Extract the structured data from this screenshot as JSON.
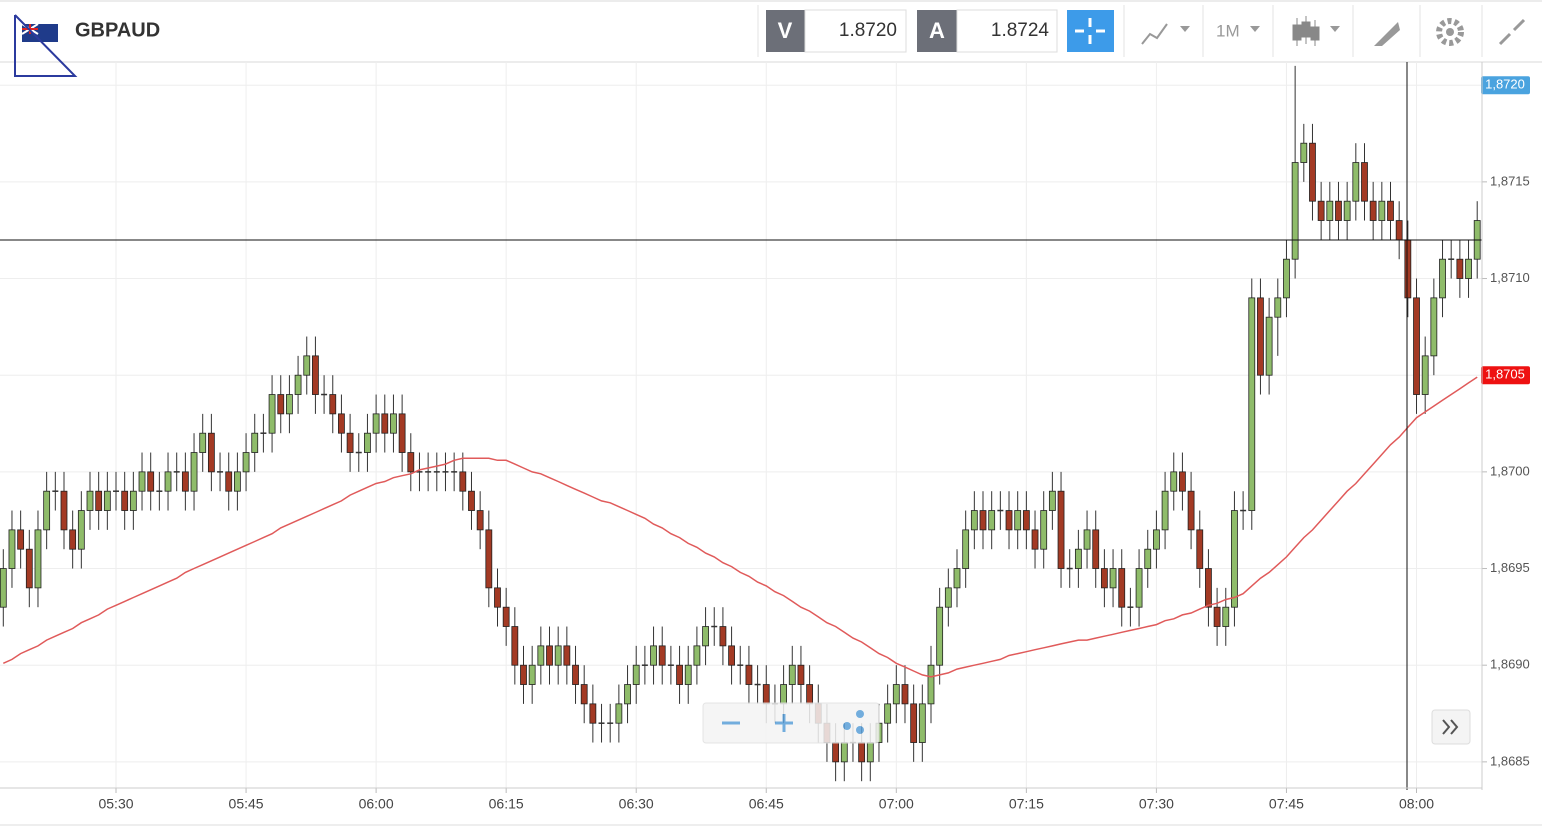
{
  "header": {
    "symbol": "GBPAUD",
    "bid_label": "V",
    "bid": "1.8720",
    "ask_label": "A",
    "ask": "1.8724",
    "timeframe": "1M"
  },
  "chart_data": {
    "type": "candlestick",
    "categories": [
      null,
      null,
      null,
      null,
      null,
      null,
      null,
      null,
      null,
      null,
      null,
      null,
      null,
      "05:30",
      null,
      null,
      null,
      null,
      null,
      null,
      null,
      null,
      null,
      null,
      null,
      null,
      null,
      null,
      "05:45",
      null,
      null,
      null,
      null,
      null,
      null,
      null,
      null,
      null,
      null,
      null,
      null,
      null,
      null,
      "06:00",
      null,
      null,
      null,
      null,
      null,
      null,
      null,
      null,
      null,
      null,
      null,
      null,
      null,
      null,
      "06:15",
      null,
      null,
      null,
      null,
      null,
      null,
      null,
      null,
      null,
      null,
      null,
      null,
      null,
      null,
      "06:30",
      null,
      null,
      null,
      null,
      null,
      null,
      null,
      null,
      null,
      null,
      null,
      null,
      null,
      null,
      "06:45",
      null,
      null,
      null,
      null,
      null,
      null,
      null,
      null,
      null,
      null,
      null,
      null,
      null,
      null,
      "07:00",
      null,
      null,
      null,
      null,
      null,
      null,
      null,
      null,
      null,
      null,
      null,
      null,
      null,
      null,
      "07:15",
      null,
      null,
      null,
      null,
      null,
      null,
      null,
      null,
      null,
      null,
      null,
      null,
      null,
      null,
      "07:30",
      null,
      null,
      null,
      null,
      null,
      null,
      null,
      null,
      null,
      null,
      null,
      null,
      null,
      null,
      "07:45",
      null,
      null,
      null,
      null,
      null,
      null,
      null,
      null,
      null,
      null,
      null,
      null,
      null,
      null,
      "08:00",
      null,
      null,
      null,
      null,
      null,
      null,
      null
    ],
    "open": [
      1.8693,
      1.8695,
      1.8697,
      1.8696,
      1.8694,
      1.8697,
      1.8699,
      1.8699,
      1.8697,
      1.8696,
      1.8698,
      1.8699,
      1.8698,
      1.8699,
      1.8699,
      1.8698,
      1.8699,
      1.87,
      1.8699,
      1.8699,
      1.87,
      1.87,
      1.8699,
      1.8701,
      1.8702,
      1.87,
      1.87,
      1.8699,
      1.87,
      1.8701,
      1.8702,
      1.8702,
      1.8704,
      1.8703,
      1.8704,
      1.8705,
      1.8706,
      1.8704,
      1.8704,
      1.8703,
      1.8702,
      1.8701,
      1.8701,
      1.8702,
      1.8703,
      1.8702,
      1.8703,
      1.8701,
      1.87,
      1.87,
      1.87,
      1.87,
      1.87,
      1.87,
      1.8699,
      1.8698,
      1.8697,
      1.8694,
      1.8693,
      1.8692,
      1.869,
      1.8689,
      1.869,
      1.8691,
      1.869,
      1.8691,
      1.869,
      1.8689,
      1.8688,
      1.8687,
      1.8687,
      1.8687,
      1.8688,
      1.8689,
      1.869,
      1.869,
      1.8691,
      1.869,
      1.869,
      1.8689,
      1.869,
      1.8691,
      1.8692,
      1.8692,
      1.8691,
      1.869,
      1.869,
      1.8689,
      1.8689,
      1.8688,
      1.8688,
      1.8689,
      1.869,
      1.8689,
      1.8688,
      1.8687,
      1.8686,
      1.8685,
      1.8686,
      1.8686,
      1.8685,
      1.8686,
      1.8687,
      1.8688,
      1.8689,
      1.8688,
      1.8686,
      1.8688,
      1.869,
      1.8693,
      1.8694,
      1.8695,
      1.8697,
      1.8698,
      1.8697,
      1.8698,
      1.8698,
      1.8697,
      1.8698,
      1.8697,
      1.8696,
      1.8698,
      1.8699,
      1.8695,
      1.8695,
      1.8696,
      1.8697,
      1.8695,
      1.8694,
      1.8695,
      1.8693,
      1.8693,
      1.8695,
      1.8696,
      1.8697,
      1.8699,
      1.87,
      1.8699,
      1.8697,
      1.8695,
      1.8693,
      1.8692,
      1.8693,
      1.8698,
      1.8698,
      1.8709,
      1.8705,
      1.8708,
      1.8709,
      1.8711,
      1.8716,
      1.8717,
      1.8714,
      1.8713,
      1.8714,
      1.8713,
      1.8714,
      1.8716,
      1.8714,
      1.8713,
      1.8714,
      1.8713,
      1.8712,
      1.8709,
      1.8704,
      1.8706,
      1.8709,
      1.8711,
      1.8711,
      1.871,
      1.8711
    ],
    "high": [
      1.8696,
      1.8698,
      1.8698,
      1.8697,
      1.8698,
      1.87,
      1.87,
      1.87,
      1.8698,
      1.8699,
      1.87,
      1.87,
      1.87,
      1.87,
      1.87,
      1.87,
      1.8701,
      1.8701,
      1.87,
      1.8701,
      1.8701,
      1.8701,
      1.8702,
      1.8703,
      1.8703,
      1.8701,
      1.8701,
      1.8701,
      1.8702,
      1.8703,
      1.8703,
      1.8705,
      1.8705,
      1.8705,
      1.8706,
      1.8707,
      1.8707,
      1.8705,
      1.8705,
      1.8704,
      1.8703,
      1.8702,
      1.8703,
      1.8704,
      1.8704,
      1.8704,
      1.8704,
      1.8702,
      1.8701,
      1.8701,
      1.8701,
      1.8701,
      1.8701,
      1.8701,
      1.87,
      1.8699,
      1.8698,
      1.8695,
      1.8694,
      1.8693,
      1.8691,
      1.8691,
      1.8692,
      1.8692,
      1.8692,
      1.8692,
      1.8691,
      1.869,
      1.8689,
      1.8688,
      1.8688,
      1.8689,
      1.869,
      1.8691,
      1.8691,
      1.8692,
      1.8692,
      1.8691,
      1.8691,
      1.8691,
      1.8692,
      1.8693,
      1.8693,
      1.8693,
      1.8692,
      1.8691,
      1.8691,
      1.869,
      1.869,
      1.8689,
      1.869,
      1.8691,
      1.8691,
      1.869,
      1.8689,
      1.8688,
      1.8687,
      1.8687,
      1.8687,
      1.8687,
      1.8687,
      1.8688,
      1.8689,
      1.869,
      1.869,
      1.8689,
      1.8689,
      1.8691,
      1.8694,
      1.8695,
      1.8696,
      1.8698,
      1.8699,
      1.8699,
      1.8699,
      1.8699,
      1.8699,
      1.8699,
      1.8699,
      1.8698,
      1.8699,
      1.87,
      1.87,
      1.8696,
      1.8697,
      1.8698,
      1.8698,
      1.8696,
      1.8696,
      1.8696,
      1.8694,
      1.8696,
      1.8697,
      1.8698,
      1.87,
      1.8701,
      1.8701,
      1.87,
      1.8698,
      1.8696,
      1.8694,
      1.8694,
      1.8699,
      1.8699,
      1.871,
      1.871,
      1.8709,
      1.871,
      1.8712,
      1.8721,
      1.8718,
      1.8718,
      1.8715,
      1.8715,
      1.8715,
      1.8715,
      1.8717,
      1.8717,
      1.8715,
      1.8715,
      1.8715,
      1.8714,
      1.8713,
      1.871,
      1.8707,
      1.871,
      1.8712,
      1.8712,
      1.8712,
      1.8712,
      1.8714
    ],
    "low": [
      1.8692,
      1.8694,
      1.8695,
      1.8693,
      1.8693,
      1.8696,
      1.8698,
      1.8696,
      1.8695,
      1.8695,
      1.8697,
      1.8697,
      1.8697,
      1.8698,
      1.8697,
      1.8697,
      1.8698,
      1.8698,
      1.8698,
      1.8698,
      1.8699,
      1.8698,
      1.8698,
      1.87,
      1.8699,
      1.8699,
      1.8698,
      1.8698,
      1.8699,
      1.87,
      1.8701,
      1.8701,
      1.8702,
      1.8702,
      1.8703,
      1.8704,
      1.8703,
      1.8703,
      1.8702,
      1.8701,
      1.87,
      1.87,
      1.87,
      1.8701,
      1.8701,
      1.8701,
      1.87,
      1.8699,
      1.8699,
      1.8699,
      1.8699,
      1.8699,
      1.8699,
      1.8698,
      1.8697,
      1.8696,
      1.8693,
      1.8692,
      1.8691,
      1.8689,
      1.8688,
      1.8688,
      1.8689,
      1.8689,
      1.8689,
      1.8689,
      1.8688,
      1.8687,
      1.8686,
      1.8686,
      1.8686,
      1.8686,
      1.8687,
      1.8688,
      1.8689,
      1.8689,
      1.8689,
      1.8689,
      1.8688,
      1.8688,
      1.8689,
      1.869,
      1.8691,
      1.869,
      1.8689,
      1.8689,
      1.8688,
      1.8688,
      1.8687,
      1.8687,
      1.8687,
      1.8688,
      1.8688,
      1.8687,
      1.8686,
      1.8685,
      1.8684,
      1.8684,
      1.8685,
      1.8684,
      1.8684,
      1.8685,
      1.8686,
      1.8687,
      1.8687,
      1.8685,
      1.8685,
      1.8687,
      1.8689,
      1.8692,
      1.8693,
      1.8694,
      1.8696,
      1.8696,
      1.8696,
      1.8697,
      1.8696,
      1.8696,
      1.8696,
      1.8695,
      1.8695,
      1.8697,
      1.8694,
      1.8694,
      1.8694,
      1.8695,
      1.8694,
      1.8693,
      1.8693,
      1.8692,
      1.8692,
      1.8692,
      1.8694,
      1.8695,
      1.8696,
      1.8698,
      1.8698,
      1.8696,
      1.8694,
      1.8692,
      1.8691,
      1.8691,
      1.8692,
      1.8697,
      1.8697,
      1.8704,
      1.8704,
      1.8706,
      1.8708,
      1.871,
      1.8715,
      1.8713,
      1.8712,
      1.8712,
      1.8712,
      1.8712,
      1.8713,
      1.8713,
      1.8712,
      1.8712,
      1.8712,
      1.8711,
      1.8708,
      1.8703,
      1.8703,
      1.8705,
      1.8708,
      1.871,
      1.8709,
      1.8709,
      1.871
    ],
    "close": [
      1.8695,
      1.8697,
      1.8696,
      1.8694,
      1.8697,
      1.8699,
      1.8699,
      1.8697,
      1.8696,
      1.8698,
      1.8699,
      1.8698,
      1.8699,
      1.8699,
      1.8698,
      1.8699,
      1.87,
      1.8699,
      1.8699,
      1.87,
      1.87,
      1.8699,
      1.8701,
      1.8702,
      1.87,
      1.87,
      1.8699,
      1.87,
      1.8701,
      1.8702,
      1.8702,
      1.8704,
      1.8703,
      1.8704,
      1.8705,
      1.8706,
      1.8704,
      1.8704,
      1.8703,
      1.8702,
      1.8701,
      1.8701,
      1.8702,
      1.8703,
      1.8702,
      1.8703,
      1.8701,
      1.87,
      1.87,
      1.87,
      1.87,
      1.87,
      1.87,
      1.8699,
      1.8698,
      1.8697,
      1.8694,
      1.8693,
      1.8692,
      1.869,
      1.8689,
      1.869,
      1.8691,
      1.869,
      1.8691,
      1.869,
      1.8689,
      1.8688,
      1.8687,
      1.8687,
      1.8687,
      1.8688,
      1.8689,
      1.869,
      1.869,
      1.8691,
      1.869,
      1.869,
      1.8689,
      1.869,
      1.8691,
      1.8692,
      1.8692,
      1.8691,
      1.869,
      1.869,
      1.8689,
      1.8689,
      1.8688,
      1.8688,
      1.8689,
      1.869,
      1.8689,
      1.8688,
      1.8687,
      1.8686,
      1.8685,
      1.8686,
      1.8686,
      1.8685,
      1.8686,
      1.8687,
      1.8688,
      1.8689,
      1.8688,
      1.8686,
      1.8688,
      1.869,
      1.8693,
      1.8694,
      1.8695,
      1.8697,
      1.8698,
      1.8697,
      1.8698,
      1.8698,
      1.8697,
      1.8698,
      1.8697,
      1.8696,
      1.8698,
      1.8699,
      1.8695,
      1.8695,
      1.8696,
      1.8697,
      1.8695,
      1.8694,
      1.8695,
      1.8693,
      1.8693,
      1.8695,
      1.8696,
      1.8697,
      1.8699,
      1.87,
      1.8699,
      1.8697,
      1.8695,
      1.8693,
      1.8692,
      1.8693,
      1.8698,
      1.8698,
      1.8709,
      1.8705,
      1.8708,
      1.8709,
      1.8711,
      1.8716,
      1.8717,
      1.8714,
      1.8713,
      1.8714,
      1.8713,
      1.8714,
      1.8716,
      1.8714,
      1.8713,
      1.8714,
      1.8713,
      1.8712,
      1.8709,
      1.8704,
      1.8706,
      1.8709,
      1.8711,
      1.8711,
      1.871,
      1.8711,
      1.8713
    ],
    "up_color": "#8fbc6a",
    "down_color": "#a33a24",
    "ma": {
      "color": "#e05a5a",
      "values": [
        1.86901,
        1.86903,
        1.86906,
        1.86908,
        1.8691,
        1.86913,
        1.86915,
        1.86917,
        1.86919,
        1.86922,
        1.86924,
        1.86926,
        1.86929,
        1.86931,
        1.86933,
        1.86935,
        1.86937,
        1.86939,
        1.86941,
        1.86943,
        1.86945,
        1.86948,
        1.8695,
        1.86952,
        1.86954,
        1.86956,
        1.86958,
        1.8696,
        1.86962,
        1.86964,
        1.86966,
        1.86968,
        1.86971,
        1.86973,
        1.86975,
        1.86977,
        1.86979,
        1.86981,
        1.86983,
        1.86985,
        1.86988,
        1.8699,
        1.86992,
        1.86994,
        1.86995,
        1.86997,
        1.86998,
        1.86999,
        1.87001,
        1.87002,
        1.87003,
        1.87004,
        1.87006,
        1.87007,
        1.87007,
        1.87007,
        1.87007,
        1.87006,
        1.87006,
        1.87004,
        1.87002,
        1.87,
        1.86999,
        1.86997,
        1.86995,
        1.86993,
        1.86991,
        1.86989,
        1.86987,
        1.86985,
        1.86984,
        1.86982,
        1.8698,
        1.86978,
        1.86976,
        1.86973,
        1.86971,
        1.86968,
        1.86966,
        1.86963,
        1.86961,
        1.86958,
        1.86956,
        1.86953,
        1.86951,
        1.86948,
        1.86946,
        1.86943,
        1.86941,
        1.86938,
        1.86936,
        1.86933,
        1.8693,
        1.86928,
        1.86925,
        1.86922,
        1.8692,
        1.86917,
        1.86914,
        1.86912,
        1.86909,
        1.86906,
        1.86904,
        1.86901,
        1.86899,
        1.86897,
        1.86895,
        1.86894,
        1.86895,
        1.86896,
        1.86898,
        1.86899,
        1.869,
        1.86901,
        1.86902,
        1.86903,
        1.86905,
        1.86906,
        1.86907,
        1.86908,
        1.86909,
        1.8691,
        1.86911,
        1.86912,
        1.86913,
        1.86913,
        1.86914,
        1.86915,
        1.86916,
        1.86917,
        1.86918,
        1.86919,
        1.8692,
        1.86921,
        1.86923,
        1.86924,
        1.86926,
        1.86927,
        1.86929,
        1.86931,
        1.86932,
        1.86934,
        1.86935,
        1.86937,
        1.86941,
        1.86945,
        1.86948,
        1.86952,
        1.86956,
        1.86961,
        1.86966,
        1.8697,
        1.86975,
        1.8698,
        1.86985,
        1.8699,
        1.86994,
        1.86999,
        1.87004,
        1.87009,
        1.87014,
        1.87018,
        1.87023,
        1.87028,
        1.87031,
        1.87034,
        1.87037,
        1.8704,
        1.87043,
        1.87046,
        1.87049
      ]
    },
    "ylim": [
      1.86837,
      1.87212
    ],
    "yticks": [
      {
        "value": 1.8685,
        "label": "1,8685"
      },
      {
        "value": 1.869,
        "label": "1,8690"
      },
      {
        "value": 1.8695,
        "label": "1,8695"
      },
      {
        "value": 1.87,
        "label": "1,8700"
      },
      {
        "value": 1.8705,
        "label": "1,8705"
      },
      {
        "value": 1.871,
        "label": "1,8710"
      },
      {
        "value": 1.8715,
        "label": "1,8715"
      },
      {
        "value": 1.872,
        "label": "1,8720"
      }
    ],
    "grid": true,
    "price_markers": [
      {
        "value": 1.872,
        "label": "1,8720",
        "color": "#4aa3df"
      },
      {
        "value": 1.8705,
        "label": "1,8705",
        "color": "#ee1111"
      }
    ]
  }
}
